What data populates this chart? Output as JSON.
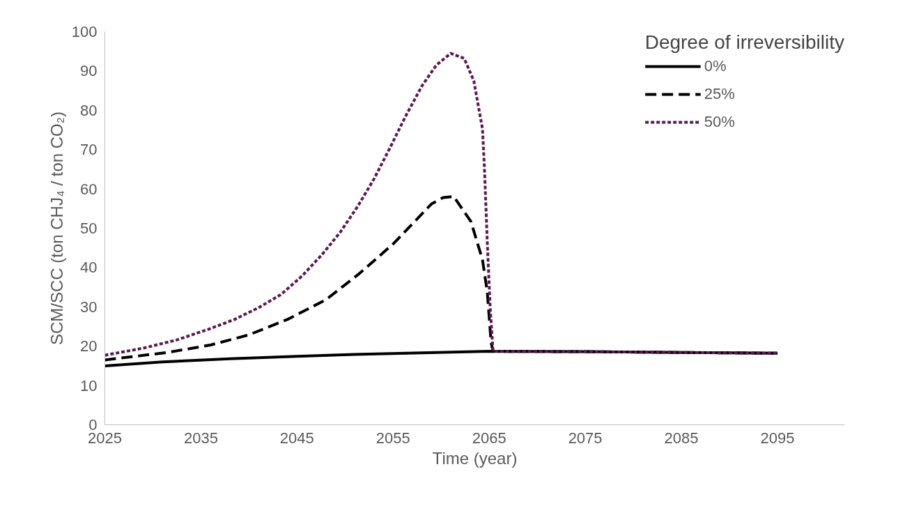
{
  "chart_data": {
    "type": "line",
    "xlabel": "Time (year)",
    "ylabel": "SCM/SCC (ton CHJ₄ / ton CO₂)",
    "legend_title": "Degree of irreversibility",
    "xlim": [
      2025,
      2102
    ],
    "xticks": [
      2025,
      2035,
      2045,
      2055,
      2065,
      2075,
      2085,
      2095
    ],
    "ylim": [
      0,
      100
    ],
    "yticks": [
      0,
      10,
      20,
      30,
      40,
      50,
      60,
      70,
      80,
      90,
      100
    ],
    "grid": false,
    "legend": "top right",
    "series": [
      {
        "name": "0%",
        "color": "#000000",
        "line_style": "solid",
        "x": [
          2025,
          2031,
          2038,
          2045,
          2051,
          2058,
          2065,
          2075,
          2085,
          2095
        ],
        "values": [
          15.0,
          16.0,
          16.8,
          17.4,
          17.9,
          18.3,
          18.7,
          18.6,
          18.4,
          18.2
        ]
      },
      {
        "name": "25%",
        "color": "#000000",
        "line_style": "dashed",
        "x": [
          2025,
          2031.5,
          2036,
          2040,
          2044,
          2048,
          2051.5,
          2055,
          2059,
          2060.2,
          2061.3,
          2063.1,
          2064.3,
          2064.8,
          2065.2,
          2065.4,
          2075,
          2085,
          2095
        ],
        "values": [
          16.5,
          18.4,
          20.3,
          22.9,
          26.8,
          31.8,
          38.5,
          46.0,
          56.2,
          57.8,
          58.1,
          51.7,
          42.0,
          33.8,
          20.9,
          18.7,
          18.6,
          18.4,
          18.2
        ]
      },
      {
        "name": "50%",
        "color": "#5a1a4f",
        "line_style": "dotted",
        "x": [
          2025,
          2029,
          2032.5,
          2036,
          2038.5,
          2041,
          2043.3,
          2045.5,
          2047.6,
          2049.5,
          2051.3,
          2053,
          2054.6,
          2056.3,
          2058,
          2059.5,
          2061,
          2062.4,
          2063.4,
          2064.3,
          2064.5,
          2064.8,
          2065.1,
          2065.4,
          2075,
          2085,
          2095
        ],
        "values": [
          17.7,
          19.5,
          21.6,
          24.5,
          26.8,
          29.8,
          33.1,
          37.8,
          43.3,
          49.0,
          55.5,
          62.5,
          70.1,
          78.5,
          86.2,
          91.5,
          94.5,
          93.2,
          87.5,
          75.3,
          65.7,
          46.5,
          30.0,
          18.7,
          18.6,
          18.4,
          18.2
        ]
      }
    ]
  }
}
